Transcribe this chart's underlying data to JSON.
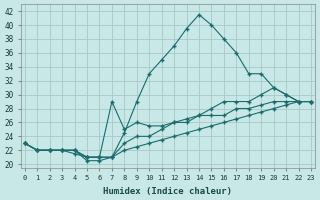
{
  "title": "",
  "xlabel": "Humidex (Indice chaleur)",
  "background_color": "#c8e8e8",
  "grid_color": "#a8c8c8",
  "line_color": "#1a6b6b",
  "x_ticks": [
    0,
    1,
    2,
    3,
    4,
    5,
    6,
    7,
    8,
    9,
    10,
    11,
    12,
    13,
    14,
    15,
    16,
    17,
    18,
    19,
    20,
    21,
    22,
    23
  ],
  "y_ticks": [
    20,
    22,
    24,
    26,
    28,
    30,
    32,
    34,
    36,
    38,
    40,
    42
  ],
  "xlim": [
    -0.3,
    23.3
  ],
  "ylim": [
    19.5,
    43
  ],
  "series": [
    [
      23,
      22,
      22,
      22,
      22,
      20.5,
      20.5,
      21,
      24.5,
      29,
      33,
      35,
      37,
      39.5,
      41.5,
      40,
      38,
      36,
      33,
      33,
      31,
      30,
      29,
      29
    ],
    [
      23,
      22,
      22,
      22,
      21.5,
      21,
      21,
      29,
      25,
      26,
      25.5,
      25.5,
      26,
      26.5,
      27,
      28,
      29,
      29,
      29,
      30,
      31,
      30,
      29,
      29
    ],
    [
      23,
      22,
      22,
      22,
      22,
      21,
      21,
      21,
      23,
      24,
      24,
      25,
      26,
      26,
      27,
      27,
      27,
      28,
      28,
      28.5,
      29,
      29,
      29,
      29
    ],
    [
      23,
      22,
      22,
      22,
      22,
      21,
      21,
      21,
      22,
      22.5,
      23,
      23.5,
      24,
      24.5,
      25,
      25.5,
      26,
      26.5,
      27,
      27.5,
      28,
      28.5,
      29,
      29
    ]
  ]
}
